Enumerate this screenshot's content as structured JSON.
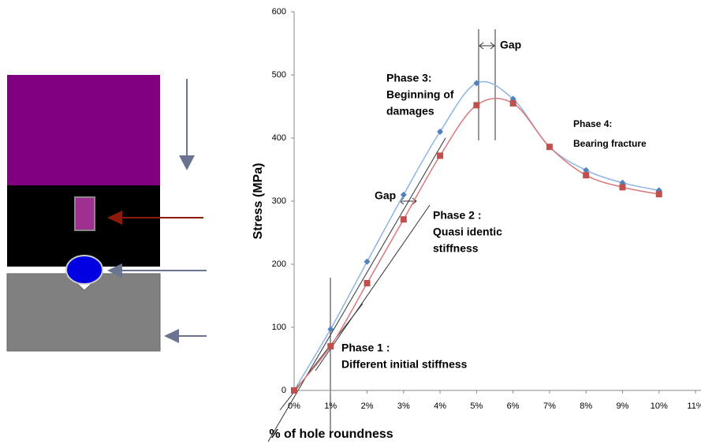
{
  "chart_data": {
    "type": "line",
    "x_label": "% of hole roundness",
    "y_label": "Stress (MPa)",
    "x": [
      0,
      1,
      2,
      3,
      4,
      5,
      6,
      7,
      8,
      9,
      10
    ],
    "xlim": [
      0,
      11
    ],
    "xticks": [
      {
        "value": 0,
        "label": "0%"
      },
      {
        "value": 1,
        "label": "1%"
      },
      {
        "value": 2,
        "label": "2%"
      },
      {
        "value": 3,
        "label": "3%"
      },
      {
        "value": 4,
        "label": "4%"
      },
      {
        "value": 5,
        "label": "5%"
      },
      {
        "value": 6,
        "label": "6%"
      },
      {
        "value": 7,
        "label": "7%"
      },
      {
        "value": 8,
        "label": "8%"
      },
      {
        "value": 9,
        "label": "9%"
      },
      {
        "value": 10,
        "label": "10%"
      },
      {
        "value": 11,
        "label": "11%"
      }
    ],
    "ylim": [
      0,
      600
    ],
    "yticks": [
      0,
      100,
      200,
      300,
      400,
      500,
      600
    ],
    "series": [
      {
        "marker": "diamond",
        "color": "#4f81bd",
        "line_color": "#8db4e2",
        "values": [
          0,
          97,
          204,
          310,
          410,
          487,
          462,
          386,
          349,
          329,
          317
        ]
      },
      {
        "marker": "square",
        "color": "#c0504d",
        "line_color": "#d9797a",
        "values": [
          0,
          70,
          170,
          271,
          372,
          452,
          455,
          386,
          341,
          322,
          311
        ]
      }
    ],
    "annotations": [
      {
        "lines": [
          "Phase 1 :",
          "Different initial stiffness"
        ]
      },
      {
        "lines": [
          "Phase 2 :",
          "Quasi identic",
          "stiffness"
        ]
      },
      {
        "lines": [
          "Phase 3:",
          "Beginning of",
          "damages"
        ]
      },
      {
        "lines": [
          "Phase 4:",
          "Bearing fracture"
        ]
      },
      {
        "lines": [
          "Gap"
        ]
      },
      {
        "lines": [
          "Gap"
        ]
      }
    ]
  }
}
